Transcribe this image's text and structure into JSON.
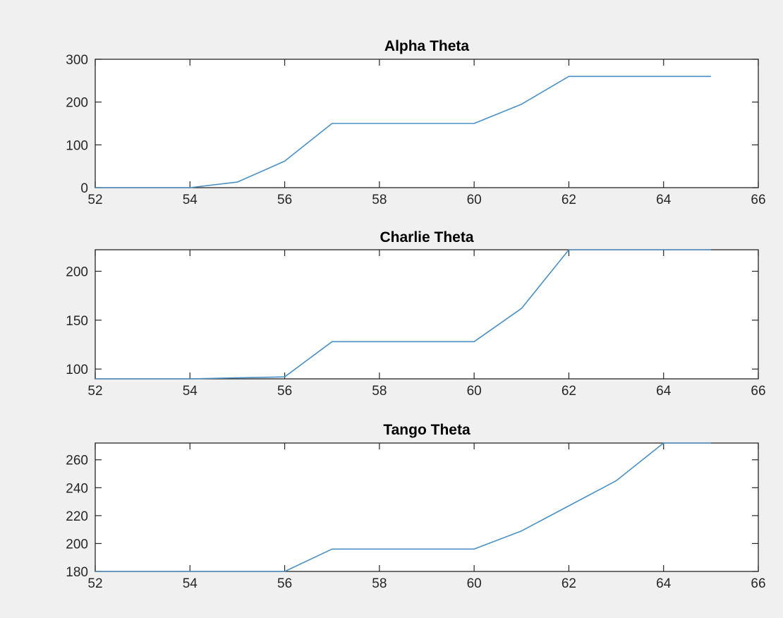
{
  "chart_data": [
    {
      "type": "line",
      "title": "Alpha Theta",
      "xlabel": "",
      "ylabel": "",
      "xlim": [
        52,
        66
      ],
      "ylim": [
        0,
        300
      ],
      "xticks": [
        "52",
        "54",
        "56",
        "58",
        "60",
        "62",
        "64",
        "66"
      ],
      "yticks": [
        "0",
        "100",
        "200",
        "300"
      ],
      "grid": false,
      "color": "#4a90c4",
      "x": [
        52,
        53,
        54,
        55,
        56,
        57,
        58,
        59,
        60,
        61,
        62,
        63,
        64,
        65
      ],
      "y": [
        0,
        0,
        0,
        13,
        62,
        150,
        150,
        150,
        150,
        195,
        260,
        260,
        260,
        260
      ]
    },
    {
      "type": "line",
      "title": "Charlie Theta",
      "xlabel": "",
      "ylabel": "",
      "xlim": [
        52,
        66
      ],
      "ylim": [
        90,
        222
      ],
      "xticks": [
        "52",
        "54",
        "56",
        "58",
        "60",
        "62",
        "64",
        "66"
      ],
      "yticks": [
        "100",
        "150",
        "200"
      ],
      "grid": false,
      "color": "#4a90c4",
      "x": [
        52,
        53,
        54,
        55,
        56,
        57,
        58,
        59,
        60,
        61,
        62,
        63,
        64,
        65
      ],
      "y": [
        90,
        90,
        90,
        91,
        92,
        128,
        128,
        128,
        128,
        162,
        222,
        222,
        222,
        222
      ]
    },
    {
      "type": "line",
      "title": "Tango Theta",
      "xlabel": "",
      "ylabel": "",
      "xlim": [
        52,
        66
      ],
      "ylim": [
        180,
        272
      ],
      "xticks": [
        "52",
        "54",
        "56",
        "58",
        "60",
        "62",
        "64",
        "66"
      ],
      "yticks": [
        "180",
        "200",
        "220",
        "240",
        "260"
      ],
      "grid": false,
      "color": "#4a90c4",
      "x": [
        52,
        53,
        54,
        55,
        56,
        57,
        58,
        59,
        60,
        61,
        62,
        63,
        64,
        65
      ],
      "y": [
        180,
        180,
        180,
        180,
        180,
        196,
        196,
        196,
        196,
        209,
        227,
        245,
        272,
        272
      ]
    }
  ]
}
